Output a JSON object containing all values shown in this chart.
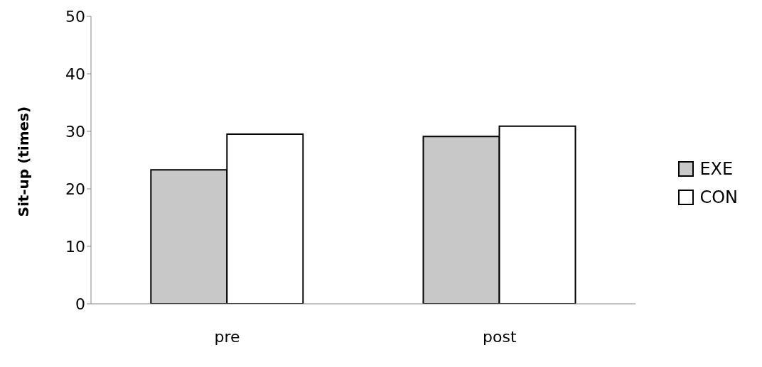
{
  "chart_data": {
    "type": "bar",
    "ylabel": "Sit-up (times)",
    "categories": [
      "pre",
      "post"
    ],
    "series": [
      {
        "name": "EXE",
        "color": "#c8c8c8",
        "values": [
          23.3,
          29.1
        ]
      },
      {
        "name": "CON",
        "color": "#ffffff",
        "values": [
          29.5,
          30.9
        ]
      }
    ],
    "ylim": [
      0,
      50
    ],
    "yticks": [
      0,
      10,
      20,
      30,
      40,
      50
    ],
    "grid": false,
    "legend": "right"
  }
}
